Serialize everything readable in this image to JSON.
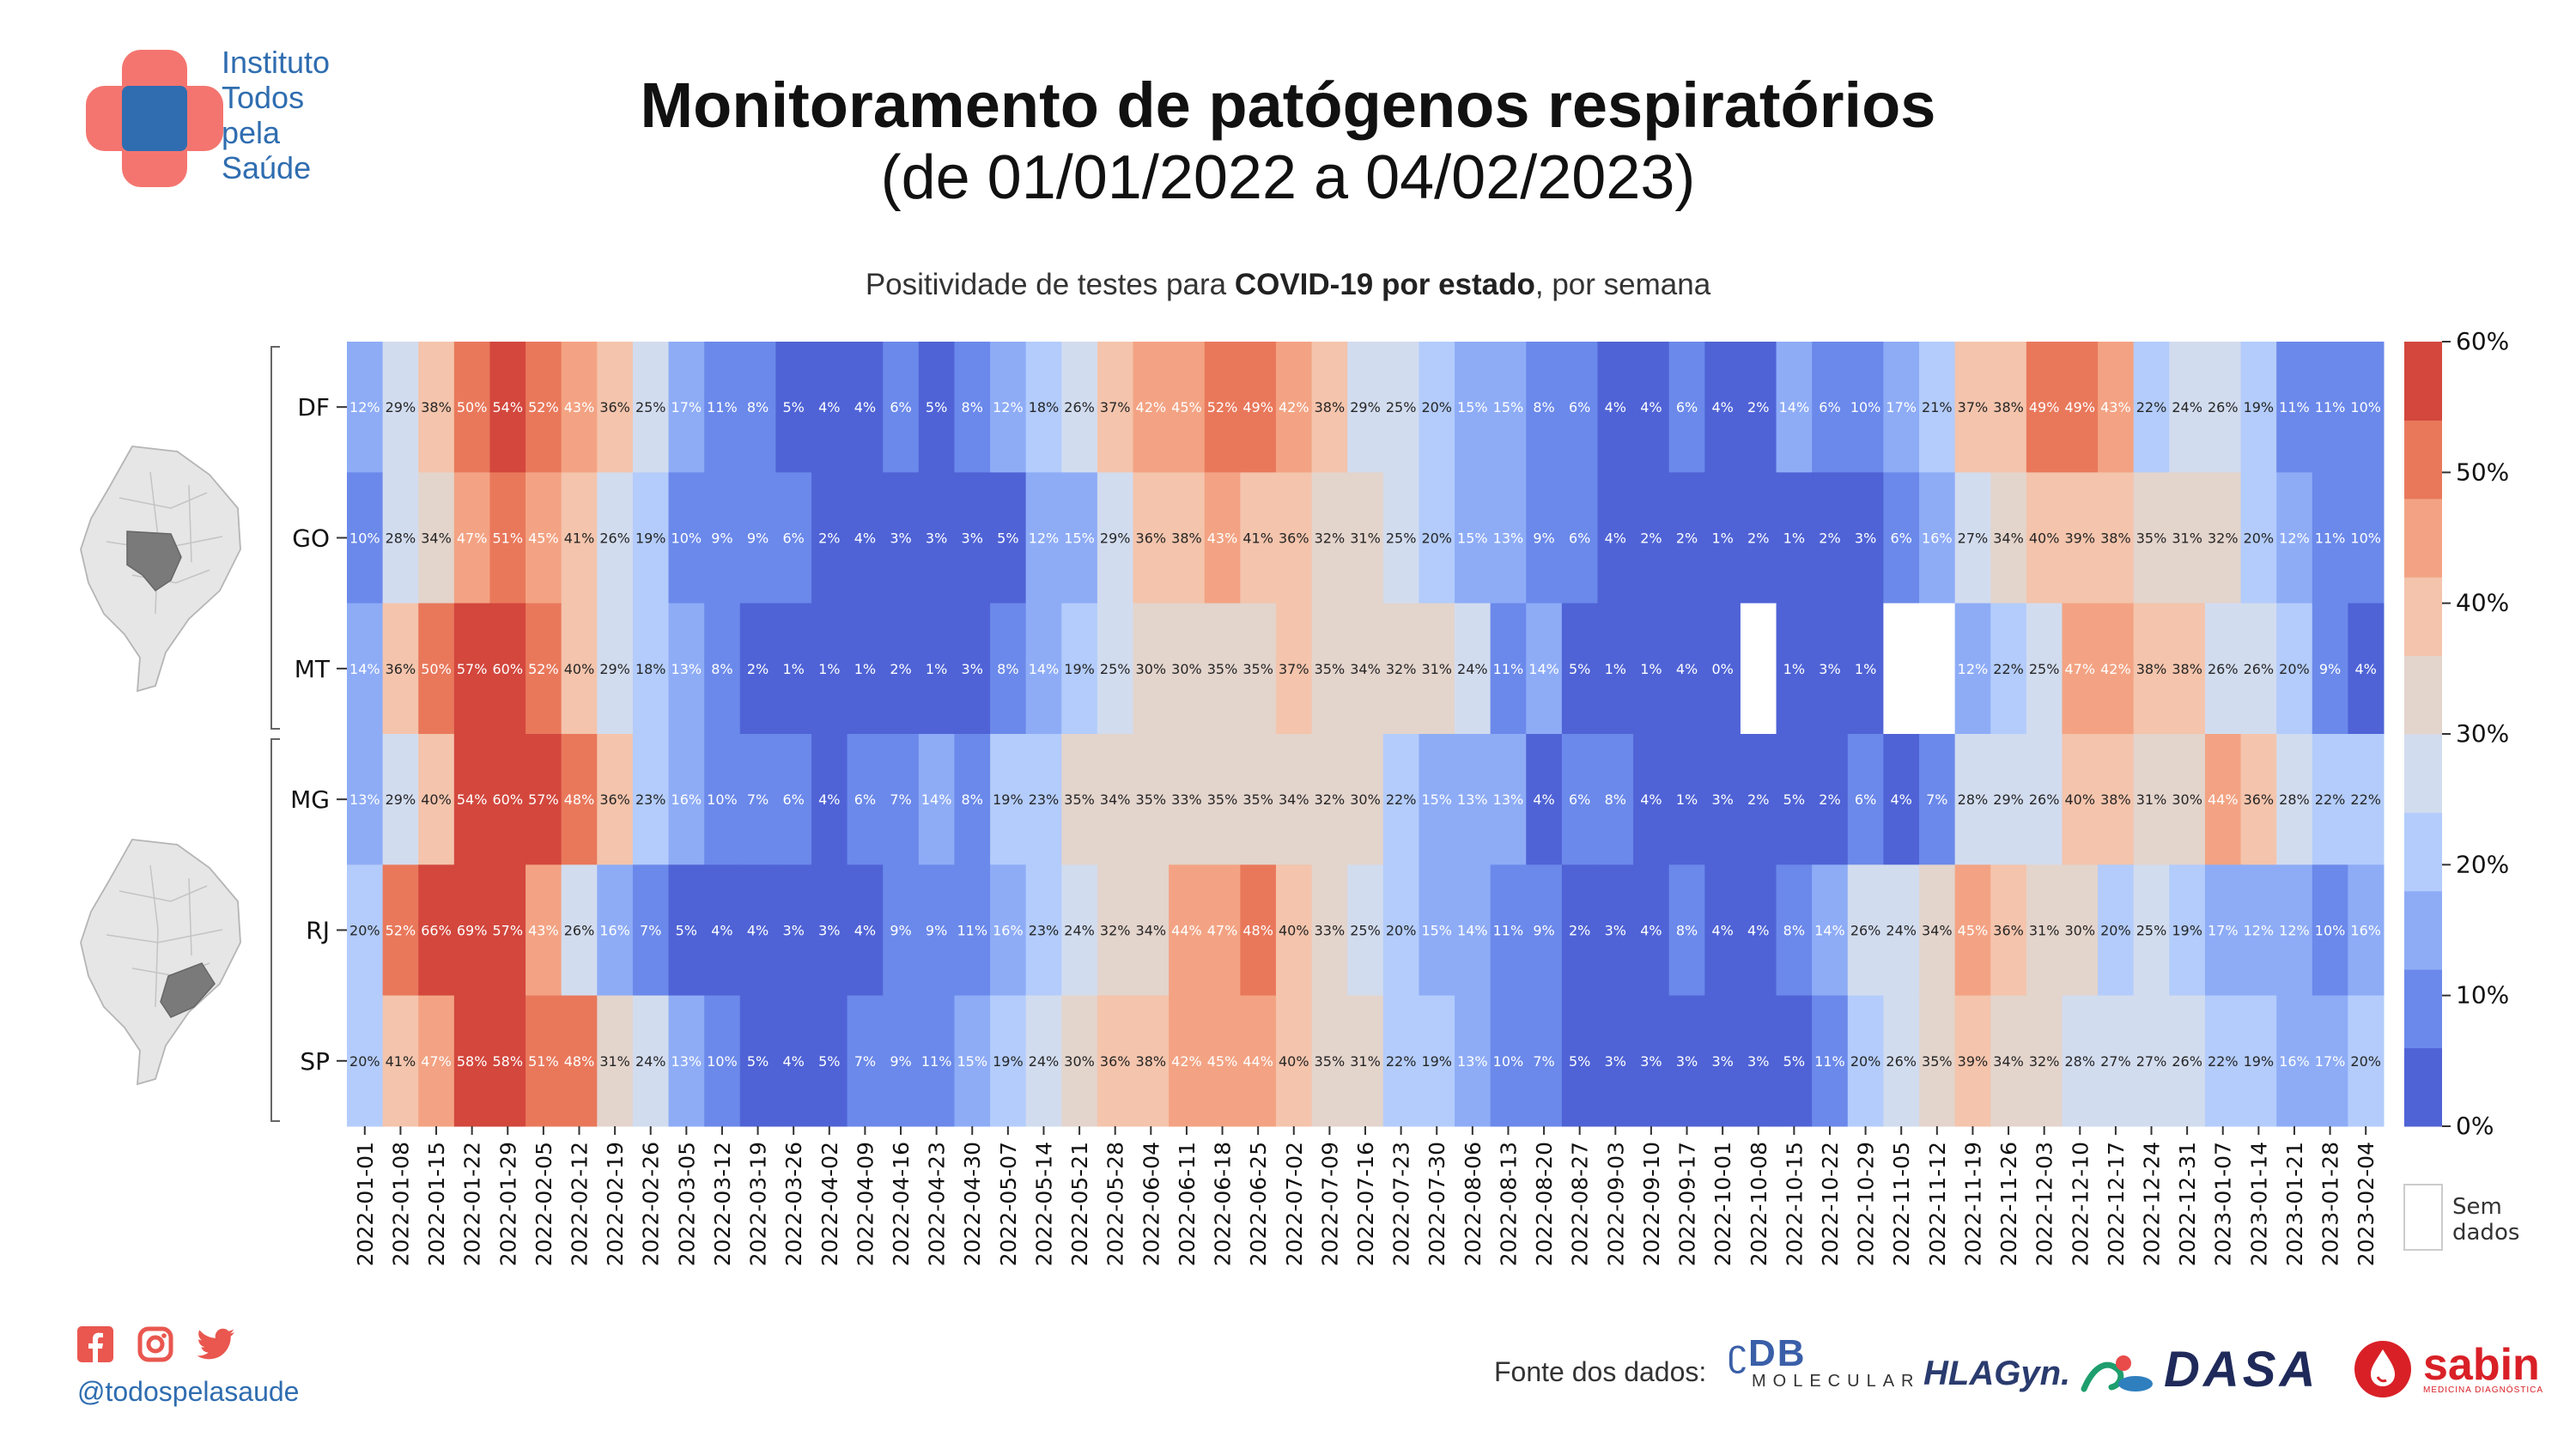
{
  "logo": {
    "lines": [
      "Instituto",
      "Todos",
      "pela",
      "Saúde"
    ]
  },
  "header": {
    "title": "Monitoramento de patógenos respiratórios",
    "subtitle": "(de 01/01/2022 a 04/02/2023)"
  },
  "chart_subtitle": {
    "pre": "Positividade de testes para ",
    "bold": "COVID-19 por estado",
    "post": ", por semana"
  },
  "footer": {
    "handle": "@todospelasaude",
    "source_label": "Fonte dos dados:",
    "sponsors": {
      "db_main": "DB",
      "db_sub": "MOLECULAR",
      "hla": "HLAGyn.",
      "dasa": "DASA",
      "sabin": "sabin",
      "sabin_sub": "MEDICINA DIAGNÓSTICA"
    }
  },
  "colors": {
    "scale": [
      "#4f63d6",
      "#6b89ea",
      "#8eacf6",
      "#b3ccfb",
      "#d2dcef",
      "#e3d4cc",
      "#f4c4ac",
      "#f3a383",
      "#e9785b",
      "#d3473d"
    ],
    "map_fill": "#e6e6e6",
    "map_highlight": "#7a7a7a"
  },
  "chart_data": {
    "type": "heatmap",
    "title": "Positividade de testes para COVID-19 por estado, por semana",
    "x": [
      "2022-01-01",
      "2022-01-08",
      "2022-01-15",
      "2022-01-22",
      "2022-01-29",
      "2022-02-05",
      "2022-02-12",
      "2022-02-19",
      "2022-02-26",
      "2022-03-05",
      "2022-03-12",
      "2022-03-19",
      "2022-03-26",
      "2022-04-02",
      "2022-04-09",
      "2022-04-16",
      "2022-04-23",
      "2022-04-30",
      "2022-05-07",
      "2022-05-14",
      "2022-05-21",
      "2022-05-28",
      "2022-06-04",
      "2022-06-11",
      "2022-06-18",
      "2022-06-25",
      "2022-07-02",
      "2022-07-09",
      "2022-07-16",
      "2022-07-23",
      "2022-07-30",
      "2022-08-06",
      "2022-08-13",
      "2022-08-20",
      "2022-08-27",
      "2022-09-03",
      "2022-09-10",
      "2022-09-17",
      "2022-10-01",
      "2022-10-08",
      "2022-10-15",
      "2022-10-22",
      "2022-10-29",
      "2022-11-05",
      "2022-11-12",
      "2022-11-19",
      "2022-11-26",
      "2022-12-03",
      "2022-12-10",
      "2022-12-17",
      "2022-12-24",
      "2022-12-31",
      "2023-01-07",
      "2023-01-14",
      "2023-01-21",
      "2023-01-28",
      "2023-02-04"
    ],
    "y": [
      "DF",
      "GO",
      "MT",
      "MG",
      "RJ",
      "SP"
    ],
    "groups": [
      [
        "DF",
        "GO",
        "MT"
      ],
      [
        "MG",
        "RJ",
        "SP"
      ]
    ],
    "values": [
      [
        12,
        29,
        38,
        50,
        54,
        52,
        43,
        36,
        25,
        17,
        11,
        8,
        5,
        4,
        4,
        6,
        5,
        8,
        12,
        18,
        26,
        37,
        42,
        45,
        52,
        49,
        42,
        38,
        29,
        25,
        20,
        15,
        15,
        8,
        6,
        4,
        4,
        6,
        4,
        2,
        14,
        6,
        10,
        17,
        21,
        37,
        38,
        49,
        49,
        43,
        22,
        24,
        26,
        19,
        11,
        11,
        10
      ],
      [
        10,
        28,
        34,
        47,
        51,
        45,
        41,
        26,
        19,
        10,
        9,
        9,
        6,
        2,
        4,
        3,
        3,
        3,
        5,
        12,
        15,
        29,
        36,
        38,
        43,
        41,
        36,
        32,
        31,
        25,
        20,
        15,
        13,
        9,
        6,
        4,
        2,
        2,
        1,
        2,
        1,
        2,
        3,
        6,
        16,
        27,
        34,
        40,
        39,
        38,
        35,
        31,
        32,
        20,
        12,
        11,
        10
      ],
      [
        14,
        36,
        50,
        57,
        60,
        52,
        40,
        29,
        18,
        13,
        8,
        2,
        1,
        1,
        1,
        2,
        1,
        3,
        8,
        14,
        19,
        25,
        30,
        30,
        35,
        35,
        37,
        35,
        34,
        32,
        31,
        24,
        11,
        14,
        5,
        1,
        1,
        4,
        0,
        null,
        1,
        3,
        1,
        null,
        null,
        12,
        22,
        25,
        47,
        42,
        38,
        38,
        26,
        26,
        20,
        9,
        4
      ],
      [
        13,
        29,
        40,
        54,
        60,
        57,
        48,
        36,
        23,
        16,
        10,
        7,
        6,
        4,
        6,
        7,
        14,
        8,
        19,
        23,
        35,
        34,
        35,
        33,
        35,
        35,
        34,
        32,
        30,
        22,
        15,
        13,
        13,
        4,
        6,
        8,
        4,
        1,
        3,
        2,
        5,
        2,
        6,
        4,
        7,
        28,
        29,
        26,
        40,
        38,
        31,
        30,
        44,
        36,
        28,
        22,
        22
      ],
      [
        20,
        52,
        66,
        69,
        57,
        43,
        26,
        16,
        7,
        5,
        4,
        4,
        3,
        3,
        4,
        9,
        9,
        11,
        16,
        23,
        24,
        32,
        34,
        44,
        47,
        48,
        40,
        33,
        25,
        20,
        15,
        14,
        11,
        9,
        2,
        3,
        4,
        8,
        4,
        4,
        8,
        14,
        26,
        24,
        34,
        45,
        36,
        31,
        30,
        20,
        25,
        19,
        17,
        12,
        12,
        10,
        16
      ],
      [
        20,
        41,
        47,
        58,
        58,
        51,
        48,
        31,
        24,
        13,
        10,
        5,
        4,
        5,
        7,
        9,
        11,
        15,
        19,
        24,
        30,
        36,
        38,
        42,
        45,
        44,
        40,
        35,
        31,
        22,
        19,
        13,
        10,
        7,
        5,
        3,
        3,
        3,
        3,
        3,
        5,
        11,
        20,
        26,
        35,
        39,
        34,
        32,
        28,
        27,
        27,
        26,
        22,
        19,
        16,
        17,
        20
      ]
    ],
    "colorbar": {
      "ticks": [
        "0%",
        "10%",
        "20%",
        "30%",
        "40%",
        "50%",
        "60%"
      ],
      "range": [
        0,
        60
      ]
    },
    "legend": {
      "missing_label": "Sem dados",
      "missing_lines": [
        "Sem",
        "dados"
      ]
    }
  }
}
